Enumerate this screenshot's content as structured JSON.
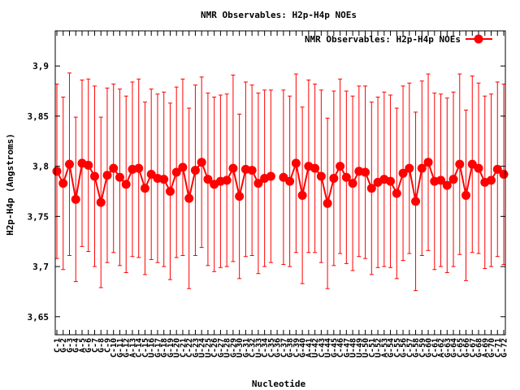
{
  "colors": {
    "series": "#ff0000",
    "axis": "#000000",
    "background": "#ffffff"
  },
  "chart_data": {
    "type": "line",
    "title": "NMR Observables: H2p-H4p NOEs",
    "xlabel": "Nucleotide",
    "ylabel": "H2p-H4p (Angstroms)",
    "ylim": [
      3.632,
      3.935
    ],
    "yticks": [
      3.65,
      3.7,
      3.75,
      3.8,
      3.85,
      3.9
    ],
    "ytick_labels": [
      "3,65",
      "3,7",
      "3,75",
      "3,8",
      "3,85",
      "3,9"
    ],
    "grid": false,
    "legend": "top-right",
    "x": [
      1,
      2,
      3,
      4,
      5,
      6,
      7,
      8,
      9,
      10,
      11,
      12,
      13,
      14,
      15,
      16,
      17,
      18,
      19,
      20,
      21,
      22,
      23,
      24,
      25,
      26,
      27,
      28,
      29,
      30,
      31,
      32,
      33,
      34,
      35,
      36,
      37,
      38,
      39,
      40,
      41,
      42,
      43,
      44,
      45,
      46,
      47,
      48,
      49,
      50,
      51,
      52,
      53,
      54,
      55,
      56,
      57,
      58,
      59,
      60,
      61,
      62,
      63,
      64,
      65,
      66,
      67,
      68,
      69,
      70,
      71,
      72
    ],
    "categories": [
      "C-1",
      "G-2",
      "G-3",
      "G-4",
      "A-5",
      "G-6",
      "C-7",
      "G-8",
      "C-9",
      "C-10",
      "G-11",
      "G-12",
      "A-13",
      "C-14",
      "C-15",
      "U-16",
      "G-17",
      "G-18",
      "G-19",
      "U-20",
      "C-21",
      "C-22",
      "G-23",
      "U-24",
      "U-25",
      "C-26",
      "G-27",
      "U-28",
      "G-29",
      "U-30",
      "G-31",
      "C-32",
      "U-33",
      "C-34",
      "C-35",
      "G-36",
      "C-37",
      "G-38",
      "C-39",
      "G-40",
      "A-41",
      "U-42",
      "C-43",
      "U-44",
      "G-45",
      "C-46",
      "G-47",
      "U-48",
      "U-49",
      "U-50",
      "C-51",
      "U-52",
      "A-53",
      "G-54",
      "C-55",
      "G-56",
      "C-57",
      "G-58",
      "C-59",
      "G-60",
      "C-61",
      "A-62",
      "G-63",
      "G-64",
      "C-65",
      "G-66",
      "C-67",
      "G-68",
      "A-69",
      "G-70",
      "C-71",
      "G-72"
    ],
    "series": [
      {
        "name": "NMR Observables: H2p-H4p NOEs",
        "missing_x": [
          36
        ],
        "values": [
          3.795,
          3.783,
          3.802,
          3.767,
          3.803,
          3.801,
          3.79,
          3.764,
          3.791,
          3.798,
          3.789,
          3.782,
          3.797,
          3.798,
          3.778,
          3.792,
          3.788,
          3.787,
          3.775,
          3.794,
          3.799,
          3.768,
          3.796,
          3.804,
          3.787,
          3.782,
          3.785,
          3.786,
          3.798,
          3.77,
          3.797,
          3.796,
          3.783,
          3.788,
          3.79,
          null,
          3.789,
          3.785,
          3.803,
          3.771,
          3.8,
          3.798,
          3.79,
          3.763,
          3.788,
          3.8,
          3.789,
          3.783,
          3.795,
          3.794,
          3.778,
          3.784,
          3.787,
          3.785,
          3.773,
          3.793,
          3.798,
          3.765,
          3.798,
          3.804,
          3.785,
          3.786,
          3.781,
          3.787,
          3.802,
          3.771,
          3.802,
          3.798,
          3.784,
          3.786,
          3.797,
          3.792
        ],
        "errors": [
          0.087,
          0.086,
          0.091,
          0.082,
          0.083,
          0.086,
          0.09,
          0.085,
          0.087,
          0.084,
          0.088,
          0.088,
          0.087,
          0.089,
          0.086,
          0.085,
          0.084,
          0.087,
          0.088,
          0.085,
          0.088,
          0.09,
          0.085,
          0.085,
          0.086,
          0.087,
          0.086,
          0.086,
          0.093,
          0.082,
          0.087,
          0.085,
          0.09,
          0.088,
          0.086,
          null,
          0.087,
          0.085,
          0.089,
          0.088,
          0.086,
          0.084,
          0.086,
          0.085,
          0.087,
          0.087,
          0.086,
          0.087,
          0.085,
          0.086,
          0.086,
          0.085,
          0.087,
          0.086,
          0.085,
          0.087,
          0.085,
          0.089,
          0.087,
          0.088,
          0.088,
          0.086,
          0.087,
          0.087,
          0.09,
          0.085,
          0.088,
          0.085,
          0.086,
          0.086,
          0.087,
          0.09
        ]
      }
    ]
  }
}
